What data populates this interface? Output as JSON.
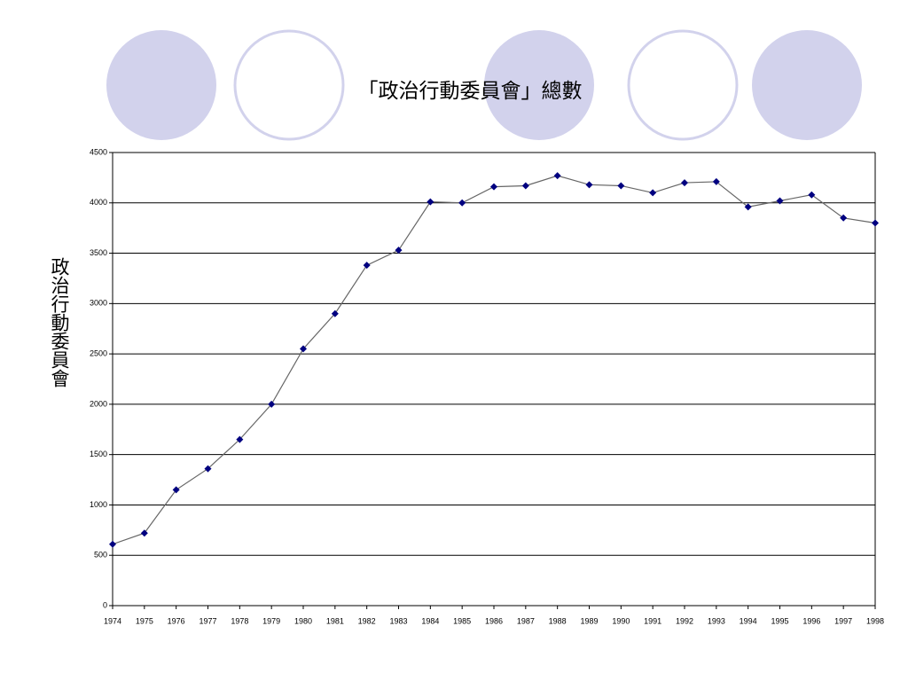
{
  "chart_data": {
    "type": "line",
    "title": "「政治行動委員會」總數",
    "y_label": "政治行動委員會",
    "categories": [
      "1974",
      "1975",
      "1976",
      "1977",
      "1978",
      "1979",
      "1980",
      "1981",
      "1982",
      "1983",
      "1984",
      "1985",
      "1986",
      "1987",
      "1988",
      "1989",
      "1990",
      "1991",
      "1992",
      "1993",
      "1994",
      "1995",
      "1996",
      "1997",
      "1998"
    ],
    "series": [
      {
        "color": "#000080",
        "values": [
          610,
          720,
          1150,
          1360,
          1650,
          2000,
          2550,
          2900,
          3380,
          3530,
          4010,
          4000,
          4160,
          4170,
          4270,
          4180,
          4170,
          4100,
          4200,
          4210,
          3960,
          4020,
          4080,
          3850,
          3800
        ]
      }
    ],
    "ylim": [
      0,
      4500
    ],
    "yticks": [
      0,
      500,
      1000,
      1500,
      2000,
      2500,
      3000,
      3500,
      4000,
      4500
    ],
    "grid": true
  }
}
